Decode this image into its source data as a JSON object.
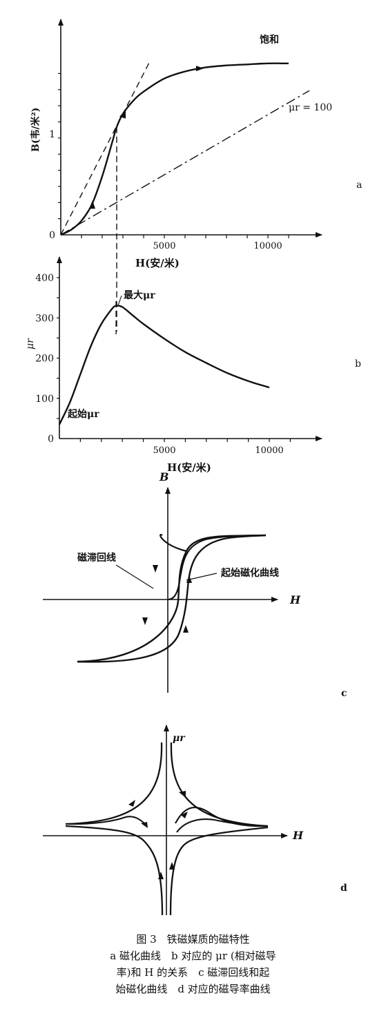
{
  "chart_data": [
    {
      "id": "a",
      "type": "line",
      "panel_label": "a",
      "xlabel": "H(安/米)",
      "ylabel": "B(韦/米²)",
      "xticks": [
        5000,
        10000
      ],
      "yticks": [
        0,
        1
      ],
      "xlim": [
        0,
        12500
      ],
      "ylim": [
        0,
        1.75
      ],
      "series": [
        {
          "name": "",
          "x": [
            0,
            500,
            1000,
            1500,
            2000,
            2500,
            2700,
            3000,
            3500,
            4000,
            5000,
            6000,
            7000,
            8000,
            9000,
            10000,
            11000
          ],
          "y": [
            0,
            0.05,
            0.14,
            0.3,
            0.58,
            0.93,
            1.07,
            1.2,
            1.33,
            1.42,
            1.55,
            1.62,
            1.66,
            1.68,
            1.69,
            1.7,
            1.7
          ]
        }
      ],
      "reference_lines": [
        {
          "name": "",
          "x": [
            0,
            4300
          ],
          "y": [
            0,
            1.72
          ],
          "style": "dashed"
        },
        {
          "name": "",
          "x": [
            0,
            12000
          ],
          "y": [
            0,
            1.43
          ],
          "style": "dash-dot"
        }
      ],
      "vertical_marker_x": 2700,
      "annotations": [
        {
          "text": "饱和",
          "x": 9500,
          "y": 1.8
        },
        {
          "text": "μr = 100",
          "x": 11300,
          "y": 1.28
        }
      ]
    },
    {
      "id": "b",
      "type": "line",
      "panel_label": "b",
      "xlabel": "H(安/米)",
      "ylabel": "μr",
      "xticks": [
        5000,
        10000
      ],
      "yticks": [
        0,
        100,
        200,
        300,
        400
      ],
      "xlim": [
        0,
        12500
      ],
      "ylim": [
        0,
        450
      ],
      "series": [
        {
          "name": "",
          "x": [
            0,
            500,
            1000,
            1500,
            2000,
            2500,
            2700,
            3000,
            3500,
            4000,
            5000,
            6000,
            7000,
            8000,
            9000,
            10000
          ],
          "y": [
            35,
            90,
            160,
            230,
            285,
            322,
            330,
            327,
            306,
            285,
            248,
            215,
            188,
            163,
            143,
            127
          ]
        }
      ],
      "annotations": [
        {
          "text": "最大μr",
          "x": 3200,
          "y": 350
        },
        {
          "text": "起始μr",
          "x": 400,
          "y": 60
        }
      ]
    },
    {
      "id": "c",
      "type": "line",
      "panel_label": "c",
      "xlabel": "H",
      "ylabel": "B",
      "annotations": [
        {
          "text": "磁滞回线"
        },
        {
          "text": "起始磁化曲线"
        }
      ]
    },
    {
      "id": "d",
      "type": "line",
      "panel_label": "d",
      "xlabel": "H",
      "ylabel": "μr"
    }
  ],
  "caption": {
    "title": "图 3　铁磁媒质的磁特性",
    "line1": "a 磁化曲线　b 对应的 μr (相对磁导",
    "line2": "率)和 H 的关系　c 磁滞回线和起",
    "line3": "始磁化曲线　d 对应的磁导率曲线"
  }
}
